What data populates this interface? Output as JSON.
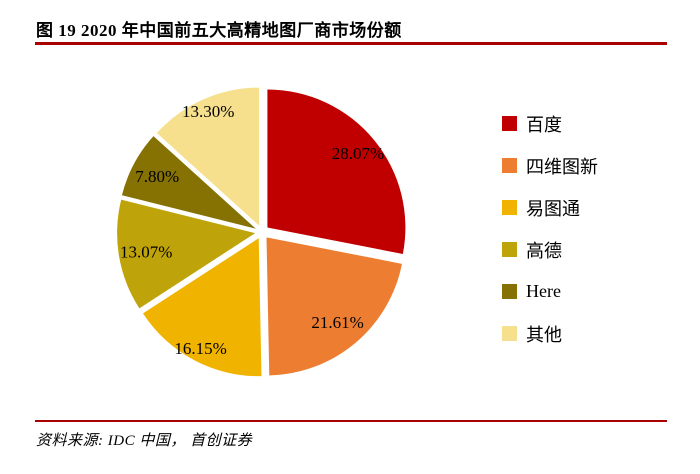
{
  "header": {
    "title": "图  19 2020 年中国前五大高精地图厂商市场份额"
  },
  "footer": {
    "source": "资料来源: IDC 中国， 首创证券"
  },
  "chart_data": {
    "type": "pie",
    "title": "2020 年中国前五大高精地图厂商市场份额",
    "labels": [
      "百度",
      "四维图新",
      "易图通",
      "高德",
      "Here",
      "其他"
    ],
    "values": [
      28.07,
      21.61,
      16.15,
      13.07,
      7.8,
      13.3
    ],
    "pct_labels": [
      "28.07%",
      "21.61%",
      "16.15%",
      "13.07%",
      "7.80%",
      "13.30%"
    ],
    "colors": [
      "#c00000",
      "#ed7d31",
      "#f0b400",
      "#bfa30a",
      "#867103",
      "#f6df8d"
    ],
    "start_angle_deg": 0,
    "direction": "clockwise",
    "explode": true,
    "legend_position": "right",
    "accent_rule_color": "#a90000"
  }
}
